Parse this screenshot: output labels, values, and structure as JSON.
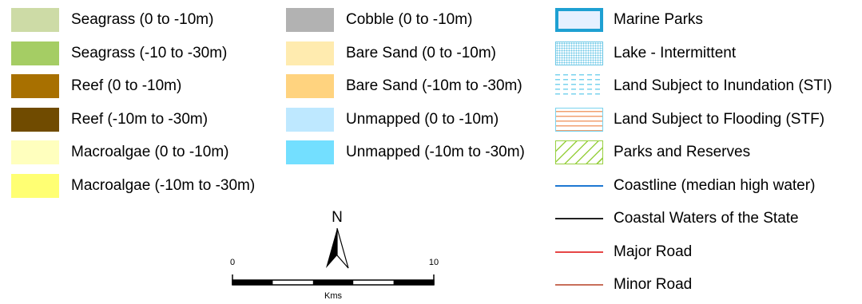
{
  "legend": {
    "column1": [
      {
        "label": "Seagrass (0 to -10m)",
        "color": "#cddba6"
      },
      {
        "label": "Seagrass (-10 to -30m)",
        "color": "#a5cd64"
      },
      {
        "label": "Reef (0 to -10m)",
        "color": "#a87000"
      },
      {
        "label": "Reef (-10m to -30m)",
        "color": "#704b00"
      },
      {
        "label": "Macroalgae (0 to -10m)",
        "color": "#ffffbe"
      },
      {
        "label": "Macroalgae (-10m to -30m)",
        "color": "#ffff73"
      }
    ],
    "column2": [
      {
        "label": "Cobble (0 to -10m)",
        "color": "#b2b2b2"
      },
      {
        "label": "Bare Sand (0 to -10m)",
        "color": "#ffebaf"
      },
      {
        "label": "Bare Sand (-10m to -30m)",
        "color": "#ffd37f"
      },
      {
        "label": "Unmapped (0 to -10m)",
        "color": "#bee8ff"
      },
      {
        "label": "Unmapped (-10m to -30m)",
        "color": "#73dfff"
      }
    ],
    "column3": [
      {
        "label": "Marine Parks",
        "symbol": "marine-parks",
        "fill": "#e6f0ff",
        "outline": "#1ea0d2"
      },
      {
        "label": "Lake - Intermittent",
        "symbol": "lake-intermittent",
        "color": "#6ec8e6"
      },
      {
        "label": "Land Subject to Inundation (STI)",
        "symbol": "land-inundation",
        "color": "#7ad3ee"
      },
      {
        "label": "Land Subject to Flooding (STF)",
        "symbol": "land-flooding",
        "color": "#f0a070",
        "outline": "#7ad3ee"
      },
      {
        "label": "Parks and Reserves",
        "symbol": "parks-reserves",
        "color": "#98d040"
      },
      {
        "label": "Coastline (median high water)",
        "symbol": "line",
        "color": "#1e78d2"
      },
      {
        "label": "Coastal Waters of the State",
        "symbol": "line",
        "color": "#222222"
      },
      {
        "label": "Major Road",
        "symbol": "line",
        "color": "#e64646"
      },
      {
        "label": "Minor Road",
        "symbol": "line",
        "color": "#c86e5a"
      }
    ]
  },
  "north_arrow": {
    "label": "N"
  },
  "scale_bar": {
    "min_label": "0",
    "max_label": "10",
    "unit": "Kms"
  }
}
